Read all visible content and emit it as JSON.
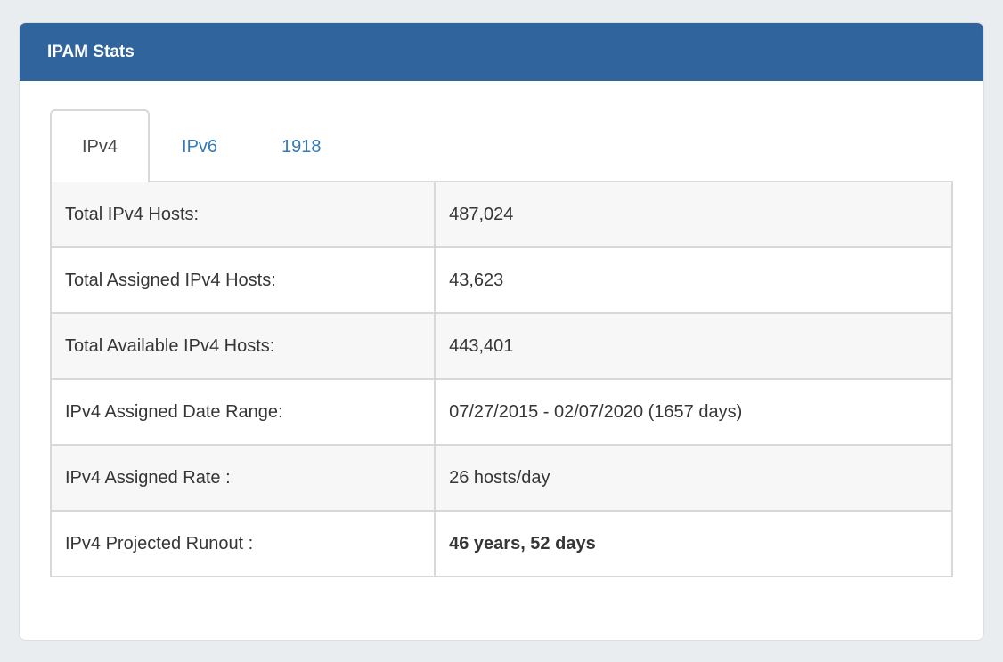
{
  "panel": {
    "title": "IPAM Stats"
  },
  "tabs": [
    {
      "label": "IPv4",
      "active": true
    },
    {
      "label": "IPv6",
      "active": false
    },
    {
      "label": "1918",
      "active": false
    }
  ],
  "stats_table": {
    "rows": [
      {
        "label": "Total IPv4 Hosts:",
        "value": "487,024"
      },
      {
        "label": "Total Assigned IPv4 Hosts:",
        "value": "43,623"
      },
      {
        "label": "Total Available IPv4 Hosts:",
        "value": "443,401"
      },
      {
        "label": "IPv4 Assigned Date Range:",
        "value": "07/27/2015 - 02/07/2020 (1657 days)"
      },
      {
        "label": "IPv4 Assigned Rate :",
        "value": "26 hosts/day"
      },
      {
        "label": "IPv4 Projected Runout :",
        "value": "46 years, 52 days"
      }
    ]
  },
  "colors": {
    "page_background": "#e9edf0",
    "panel_header_background": "#30649d",
    "panel_header_text": "#ffffff",
    "tab_link_blue": "#337ab7",
    "active_tab_text": "#4a4a4a",
    "table_border": "#d8d8d8",
    "striped_row_background": "#f7f7f7",
    "body_text": "#363636"
  }
}
